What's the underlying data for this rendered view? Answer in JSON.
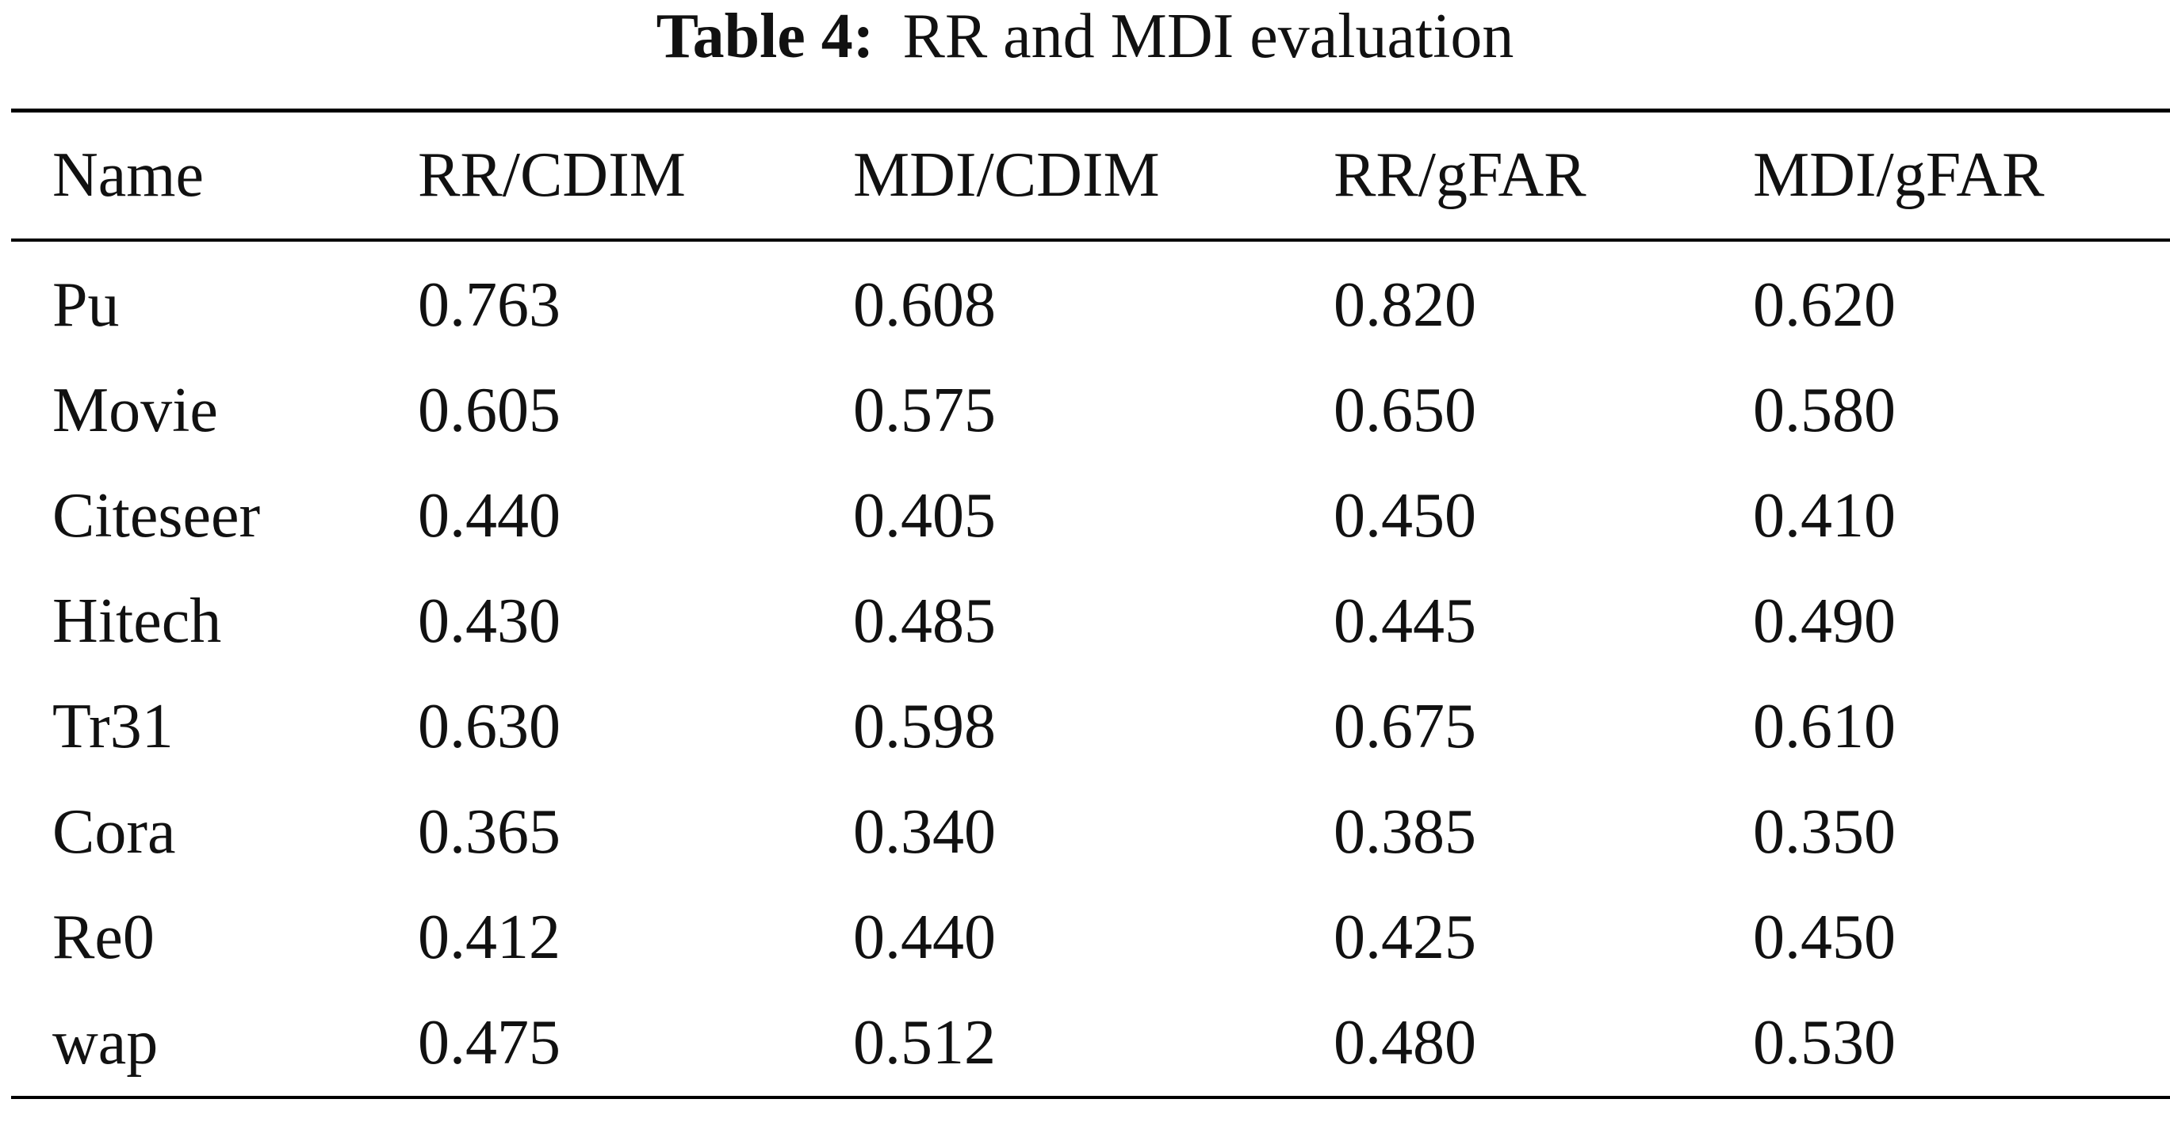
{
  "caption": {
    "label": "Table 4:",
    "text": "RR and MDI evaluation"
  },
  "table": {
    "headers": [
      "Name",
      "RR/CDIM",
      "MDI/CDIM",
      "RR/gFAR",
      "MDI/gFAR"
    ],
    "rows": [
      [
        "Pu",
        "0.763",
        "0.608",
        "0.820",
        "0.620"
      ],
      [
        "Movie",
        "0.605",
        "0.575",
        "0.650",
        "0.580"
      ],
      [
        "Citeseer",
        "0.440",
        "0.405",
        "0.450",
        "0.410"
      ],
      [
        "Hitech",
        "0.430",
        "0.485",
        "0.445",
        "0.490"
      ],
      [
        "Tr31",
        "0.630",
        "0.598",
        "0.675",
        "0.610"
      ],
      [
        "Cora",
        "0.365",
        "0.340",
        "0.385",
        "0.350"
      ],
      [
        "Re0",
        "0.412",
        "0.440",
        "0.425",
        "0.450"
      ],
      [
        "wap",
        "0.475",
        "0.512",
        "0.480",
        "0.530"
      ]
    ]
  }
}
